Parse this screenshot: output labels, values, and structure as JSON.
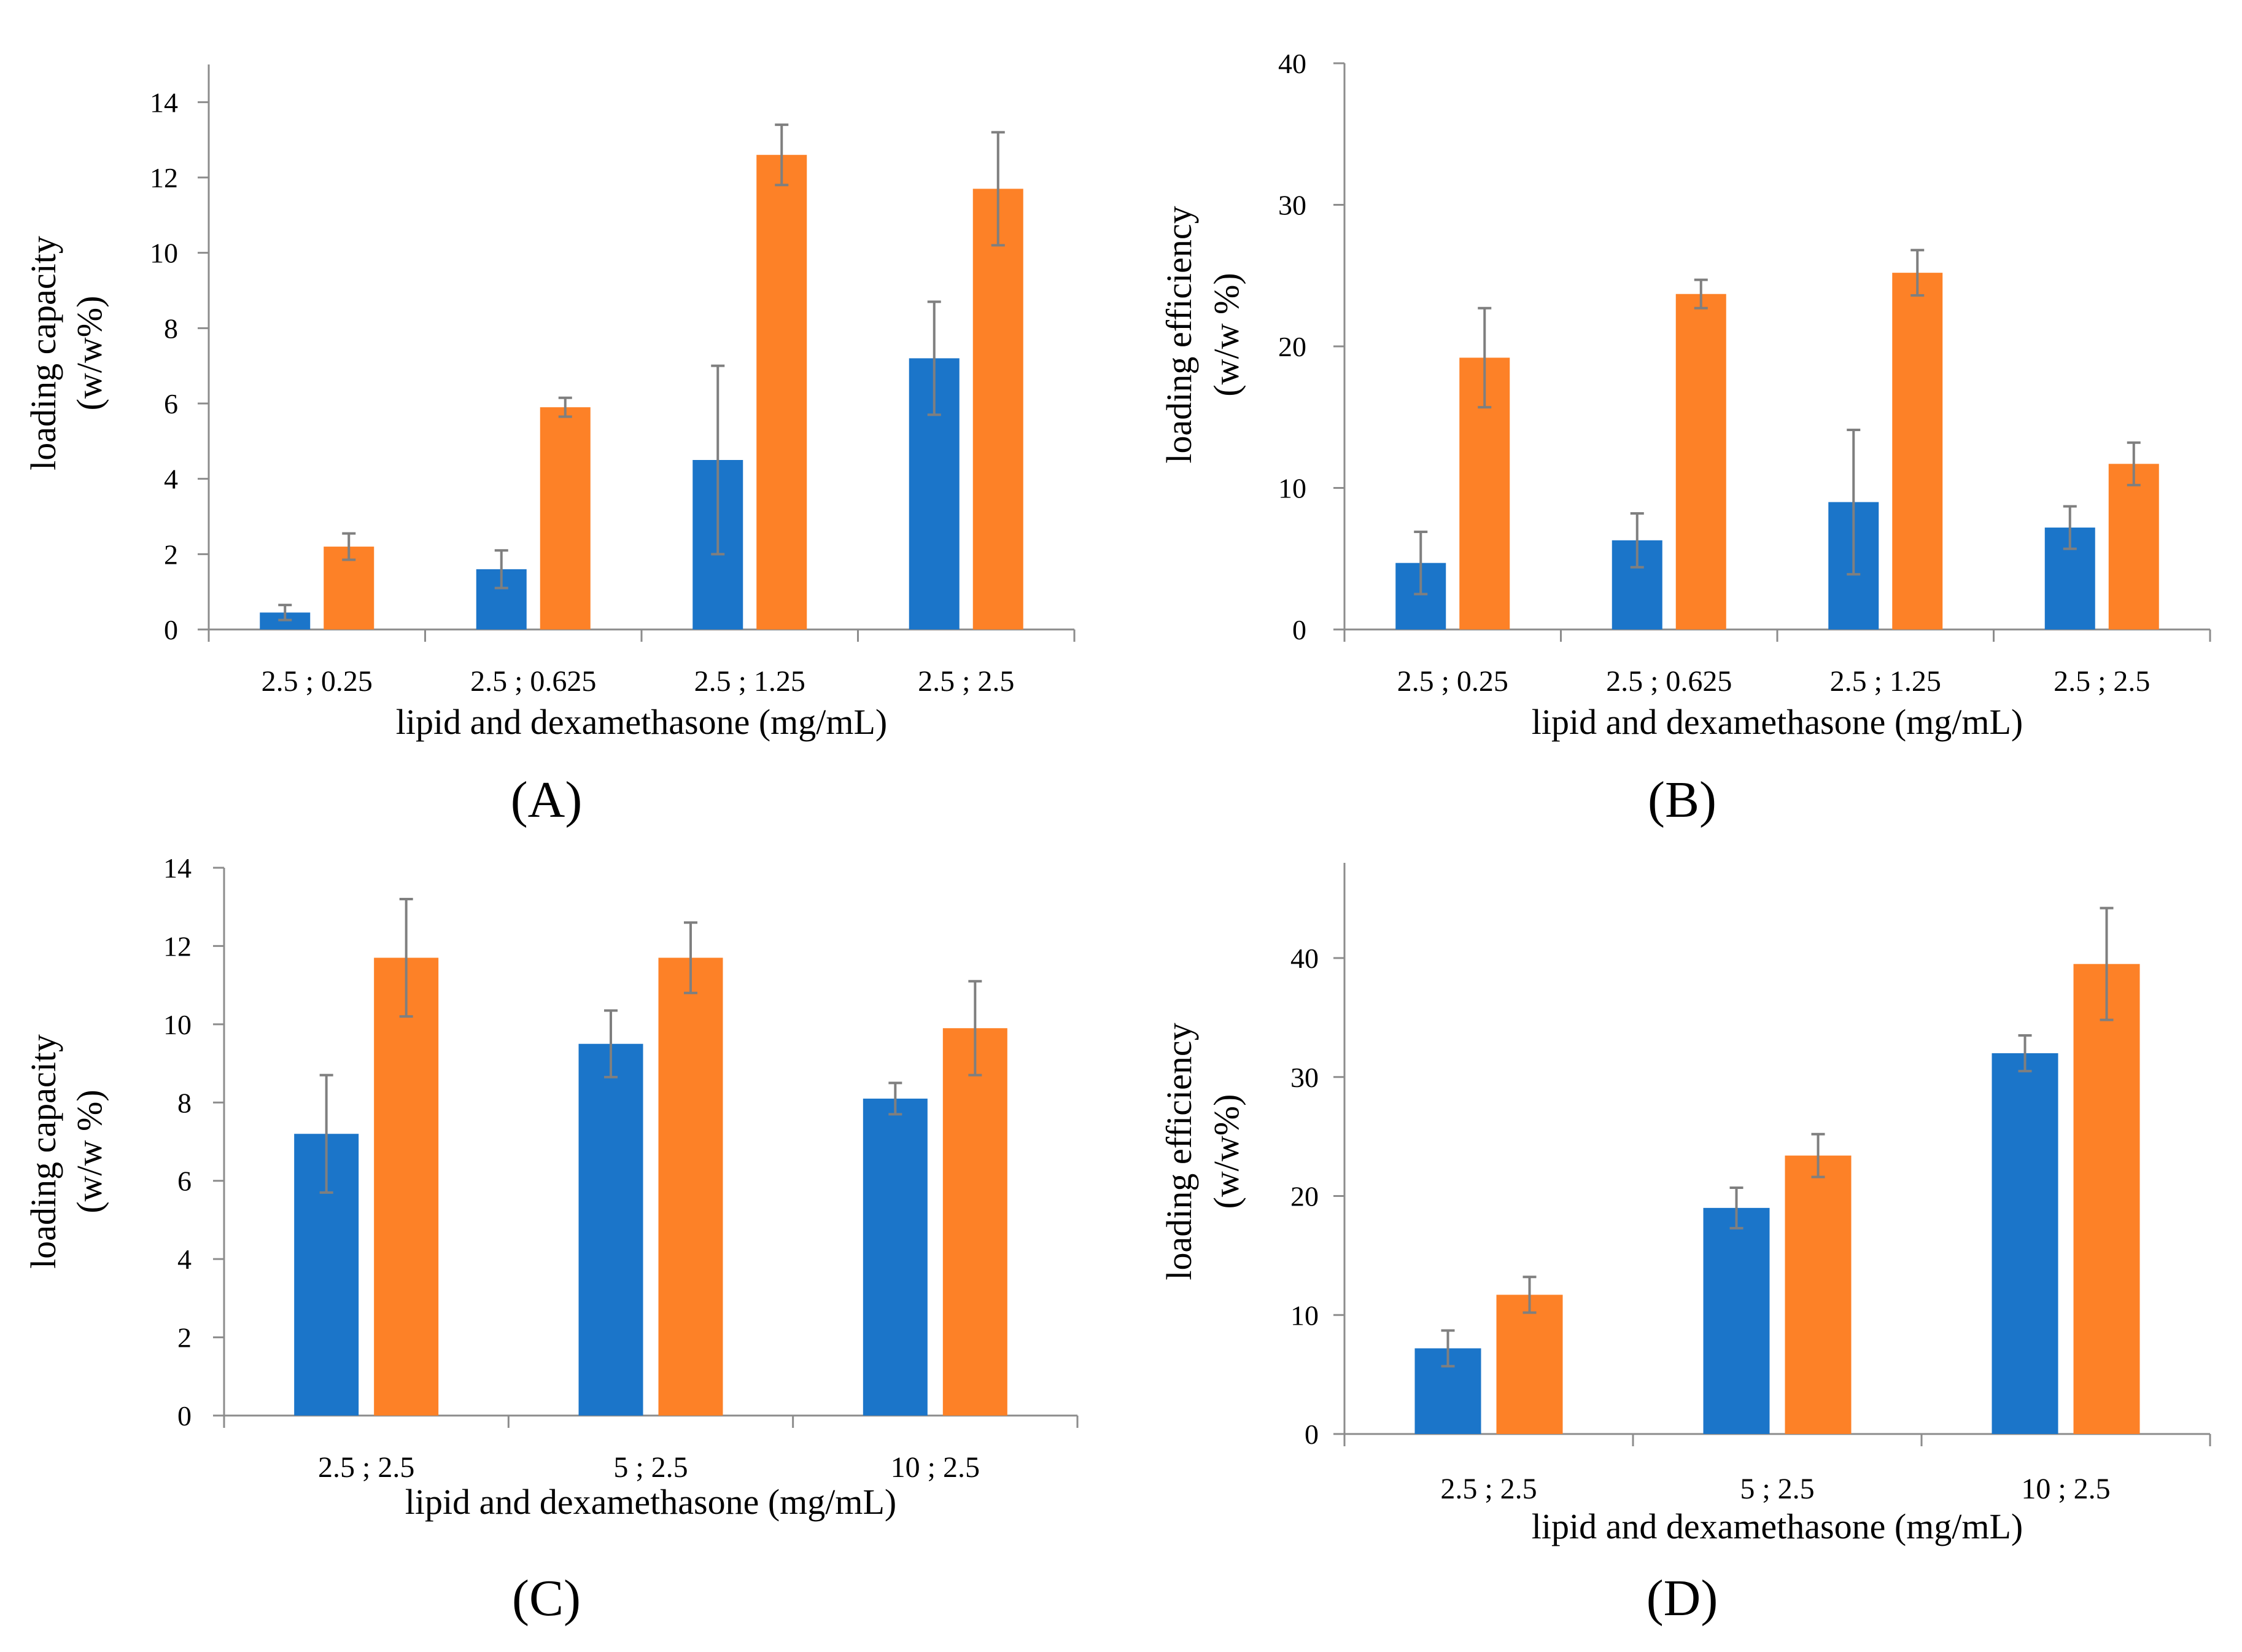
{
  "colors": {
    "series_a": "#1b75c9",
    "series_b": "#fd8127",
    "axis": "#8c8c8c",
    "error_bar": "#7f7f7f"
  },
  "chart_data": [
    {
      "type": "bar",
      "panel_label": "(A)",
      "categories": [
        "2.5 ; 0.25",
        "2.5 ; 0.625",
        "2.5 ; 1.25",
        "2.5 ; 2.5"
      ],
      "series": [
        {
          "values": [
            0.45,
            1.6,
            4.5,
            7.2
          ],
          "errors": [
            0.2,
            0.5,
            2.5,
            1.5
          ]
        },
        {
          "values": [
            2.2,
            5.9,
            12.6,
            11.7
          ],
          "errors": [
            0.35,
            0.25,
            0.8,
            1.5
          ]
        }
      ],
      "xlabel": "lipid and dexamethasone (mg/mL)",
      "ylabel_lines": [
        "loading capacity",
        "(w/w%)"
      ],
      "ylim": [
        0,
        15
      ],
      "yticks": [
        0,
        2,
        4,
        6,
        8,
        10,
        12,
        14
      ],
      "grid": false
    },
    {
      "type": "bar",
      "panel_label": "(B)",
      "categories": [
        "2.5 ; 0.25",
        "2.5 ; 0.625",
        "2.5 ; 1.25",
        "2.5 ; 2.5"
      ],
      "series": [
        {
          "values": [
            4.7,
            6.3,
            9.0,
            7.2
          ],
          "errors": [
            2.2,
            1.9,
            5.1,
            1.5
          ]
        },
        {
          "values": [
            19.2,
            23.7,
            25.2,
            11.7
          ],
          "errors": [
            3.5,
            1.0,
            1.6,
            1.5
          ]
        }
      ],
      "xlabel": "lipid and dexamethasone (mg/mL)",
      "ylabel_lines": [
        "loading efficiency",
        "(w/w %)"
      ],
      "ylim": [
        0,
        40
      ],
      "yticks": [
        0,
        10,
        20,
        30,
        40
      ],
      "grid": false
    },
    {
      "type": "bar",
      "panel_label": "(C)",
      "categories": [
        "2.5 ; 2.5",
        "5 ; 2.5",
        "10 ; 2.5"
      ],
      "series": [
        {
          "values": [
            7.2,
            9.5,
            8.1
          ],
          "errors": [
            1.5,
            0.85,
            0.4
          ]
        },
        {
          "values": [
            11.7,
            11.7,
            9.9
          ],
          "errors": [
            1.5,
            0.9,
            1.2
          ]
        }
      ],
      "xlabel": "lipid and dexamethasone (mg/mL)",
      "ylabel_lines": [
        "loading capacity",
        "(w/w %)"
      ],
      "ylim": [
        0,
        14
      ],
      "yticks": [
        0,
        2,
        4,
        6,
        8,
        10,
        12,
        14
      ],
      "grid": false
    },
    {
      "type": "bar",
      "panel_label": "(D)",
      "categories": [
        "2.5 ; 2.5",
        "5 ; 2.5",
        "10 ; 2.5"
      ],
      "series": [
        {
          "values": [
            7.2,
            19.0,
            32.0
          ],
          "errors": [
            1.5,
            1.7,
            1.5
          ]
        },
        {
          "values": [
            11.7,
            23.4,
            39.5
          ],
          "errors": [
            1.5,
            1.8,
            4.7
          ]
        }
      ],
      "xlabel": "lipid and dexamethasone (mg/mL)",
      "ylabel_lines": [
        "loading efficiency",
        "(w/w%)"
      ],
      "ylim": [
        0,
        48
      ],
      "yticks": [
        0,
        10,
        20,
        30,
        40
      ],
      "grid": false
    }
  ]
}
